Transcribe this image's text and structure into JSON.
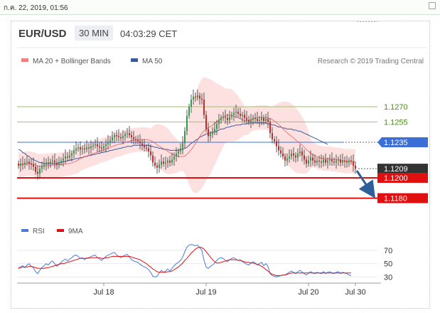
{
  "topbar": {
    "date": "ก.ค. 22, 2019, 01:56"
  },
  "header": {
    "pair": "EUR/USD",
    "timeframe": "30 MIN",
    "time": "04:03:29 CET"
  },
  "legend": {
    "ma20": "MA 20 + Bollinger Bands",
    "ma50": "MA 50",
    "credit": "Research © 2019 Trading Central"
  },
  "rsi_legend": {
    "rsi": "RSI",
    "ma9": "9MA"
  },
  "colors": {
    "candle_up": "#2e9a4a",
    "candle_down": "#c62828",
    "ma20": "#e94b4b",
    "ma50": "#3c5a9a",
    "band": "#fdd9d9",
    "support": "#e01010",
    "resistance": "#9bc46a",
    "pivot": "#3c6fd8",
    "arrow": "#2d5f9a",
    "rsi": "#4a7cd6"
  },
  "chart_data": {
    "type": "candlestick",
    "ylim": [
      1.1165,
      1.1305
    ],
    "price_levels": [
      {
        "value": 1.127,
        "label": "1.1270",
        "kind": "resistance"
      },
      {
        "value": 1.1255,
        "label": "1.1255",
        "kind": "resistance"
      },
      {
        "value": 1.1235,
        "label": "1.1235",
        "kind": "pivot"
      },
      {
        "value": 1.1209,
        "label": "1.1209",
        "kind": "last"
      },
      {
        "value": 1.12,
        "label": "1.1200",
        "kind": "support"
      },
      {
        "value": 1.118,
        "label": "1.1180",
        "kind": "support"
      }
    ],
    "xaxis": [
      {
        "label": "Jul 18",
        "index": 40
      },
      {
        "label": "Jul 19",
        "index": 88
      },
      {
        "label": "Jul 20",
        "index": 136
      },
      {
        "label": "Jul 30",
        "index": 158
      }
    ],
    "close": [
      1.1212,
      1.1214,
      1.1213,
      1.1215,
      1.1216,
      1.1214,
      1.1213,
      1.1211,
      1.1206,
      1.1204,
      1.1209,
      1.1211,
      1.1213,
      1.1215,
      1.1214,
      1.1216,
      1.1217,
      1.1215,
      1.1213,
      1.1215,
      1.1217,
      1.1219,
      1.1221,
      1.122,
      1.1222,
      1.1224,
      1.1227,
      1.1229,
      1.123,
      1.1228,
      1.1229,
      1.1228,
      1.123,
      1.1229,
      1.1231,
      1.1232,
      1.1233,
      1.1231,
      1.123,
      1.1229,
      1.1231,
      1.1233,
      1.1235,
      1.1237,
      1.124,
      1.1242,
      1.1241,
      1.124,
      1.1239,
      1.1241,
      1.1243,
      1.1244,
      1.1242,
      1.124,
      1.1238,
      1.1237,
      1.1236,
      1.1234,
      1.1232,
      1.123,
      1.1229,
      1.1226,
      1.1222,
      1.1215,
      1.1212,
      1.121,
      1.1213,
      1.1216,
      1.1214,
      1.1215,
      1.1217,
      1.1215,
      1.1218,
      1.1221,
      1.1224,
      1.1226,
      1.1229,
      1.1234,
      1.1246,
      1.1261,
      1.127,
      1.1277,
      1.128,
      1.1279,
      1.1281,
      1.1278,
      1.1277,
      1.1262,
      1.1248,
      1.1241,
      1.1243,
      1.1245,
      1.1248,
      1.1253,
      1.1257,
      1.1259,
      1.126,
      1.1259,
      1.1257,
      1.126,
      1.1262,
      1.1264,
      1.1265,
      1.1263,
      1.1261,
      1.1262,
      1.1259,
      1.1257,
      1.1255,
      1.1257,
      1.1259,
      1.1258,
      1.1256,
      1.1257,
      1.1259,
      1.1256,
      1.1258,
      1.1255,
      1.1244,
      1.1238,
      1.1236,
      1.1231,
      1.1227,
      1.1224,
      1.1221,
      1.1217,
      1.1219,
      1.1221,
      1.1224,
      1.1222,
      1.122,
      1.1224,
      1.1226,
      1.1222,
      1.1218,
      1.1214,
      1.1217,
      1.122,
      1.1217,
      1.1215,
      1.1217,
      1.1216,
      1.1215,
      1.1218,
      1.1215,
      1.1217,
      1.1218,
      1.1216,
      1.1215,
      1.1217,
      1.1218,
      1.1215,
      1.1217,
      1.1216,
      1.1215,
      1.1217,
      1.1216,
      1.1212,
      1.1209
    ],
    "ma50": [
      1.1228,
      1.1227,
      1.1225,
      1.1224,
      1.1222,
      1.1221,
      1.1219,
      1.1218,
      1.1217,
      1.1216,
      1.1215,
      1.1215,
      1.1214,
      1.1214,
      1.1214,
      1.1214,
      1.1214,
      1.1214,
      1.1214,
      1.1215,
      1.1215,
      1.1216,
      1.1216,
      1.1217,
      1.1217,
      1.1218,
      1.1218,
      1.1219,
      1.1219,
      1.122,
      1.122,
      1.1221,
      1.1221,
      1.1222,
      1.1222,
      1.1223,
      1.1223,
      1.1224,
      1.1224,
      1.1225,
      1.1225,
      1.1226,
      1.1226,
      1.1227,
      1.1227,
      1.1228,
      1.1228,
      1.1229,
      1.1229,
      1.123,
      1.123,
      1.1231,
      1.1231,
      1.1231,
      1.1232,
      1.1232,
      1.1232,
      1.1232,
      1.1232,
      1.1232,
      1.1232,
      1.1232,
      1.1231,
      1.1231,
      1.123,
      1.123,
      1.1229,
      1.1229,
      1.1228,
      1.1228,
      1.1228,
      1.1227,
      1.1227,
      1.1227,
      1.1227,
      1.1227,
      1.1228,
      1.1228,
      1.1229,
      1.123,
      1.1232,
      1.1234,
      1.1235,
      1.1237,
      1.1238,
      1.124,
      1.1241,
      1.1242,
      1.1243,
      1.1244,
      1.1244,
      1.1245,
      1.1245,
      1.1246,
      1.1247,
      1.1248,
      1.1248,
      1.1249,
      1.125,
      1.125,
      1.1251,
      1.1251,
      1.1252,
      1.1252,
      1.1252,
      1.1253,
      1.1253,
      1.1253,
      1.1254,
      1.1254,
      1.1254,
      1.1254,
      1.1254,
      1.1254,
      1.1254,
      1.1254,
      1.1254,
      1.1253,
      1.1253,
      1.1252,
      1.1252,
      1.1251,
      1.125,
      1.125,
      1.1249,
      1.1249,
      1.1248,
      1.1248,
      1.1248,
      1.1247,
      1.1247,
      1.1246,
      1.1246,
      1.1245,
      1.1244,
      1.1243,
      1.1242,
      1.1241,
      1.124,
      1.1239,
      1.1238,
      1.1237,
      1.1236,
      1.1235,
      1.1234,
      1.1233
    ],
    "rsi": [
      42,
      45,
      47,
      44,
      48,
      50,
      46,
      44,
      38,
      35,
      40,
      44,
      47,
      50,
      48,
      52,
      54,
      50,
      46,
      49,
      52,
      55,
      57,
      54,
      57,
      59,
      62,
      63,
      61,
      58,
      59,
      56,
      59,
      58,
      61,
      62,
      63,
      59,
      57,
      55,
      58,
      61,
      63,
      64,
      66,
      67,
      63,
      61,
      59,
      61,
      63,
      64,
      60,
      56,
      54,
      53,
      52,
      49,
      47,
      45,
      44,
      41,
      37,
      31,
      30,
      31,
      36,
      40,
      37,
      39,
      42,
      39,
      43,
      47,
      50,
      52,
      55,
      60,
      68,
      75,
      78,
      79,
      78,
      77,
      78,
      74,
      70,
      55,
      45,
      43,
      46,
      48,
      51,
      55,
      58,
      59,
      58,
      55,
      53,
      56,
      58,
      59,
      57,
      55,
      56,
      53,
      51,
      49,
      48,
      51,
      53,
      51,
      48,
      50,
      52,
      47,
      50,
      46,
      35,
      32,
      31,
      30,
      31,
      32,
      33,
      33,
      35,
      37,
      39,
      37,
      35,
      38,
      40,
      37,
      35,
      33,
      36,
      38,
      36,
      35,
      37,
      36,
      35,
      38,
      35,
      37,
      38,
      36,
      35,
      37,
      38,
      35,
      37,
      36,
      35,
      33,
      32
    ],
    "rsi_ma9": [
      44,
      44,
      45,
      45,
      45,
      46,
      46,
      45,
      44,
      43,
      43,
      43,
      43,
      44,
      44,
      45,
      46,
      47,
      48,
      49,
      50,
      50,
      51,
      52,
      53,
      54,
      55,
      56,
      57,
      58,
      58,
      58,
      58,
      59,
      59,
      59,
      59,
      59,
      59,
      58,
      58,
      59,
      59,
      60,
      61,
      61,
      61,
      61,
      61,
      61,
      61,
      61,
      61,
      60,
      59,
      58,
      57,
      56,
      54,
      52,
      50,
      47,
      45,
      42,
      40,
      38,
      37,
      37,
      37,
      37,
      38,
      38,
      39,
      41,
      43,
      45,
      48,
      51,
      55,
      58,
      62,
      66,
      69,
      72,
      74,
      75,
      74,
      72,
      68,
      64,
      60,
      56,
      53,
      51,
      51,
      52,
      53,
      54,
      55,
      56,
      56,
      56,
      56,
      55,
      55,
      54,
      53,
      52,
      52,
      51,
      51,
      50,
      49,
      48,
      46,
      44,
      41,
      39,
      36,
      34,
      33,
      32,
      32,
      32,
      33,
      33,
      34,
      35,
      36,
      36,
      36,
      36,
      36,
      36,
      36,
      36,
      36,
      36,
      36,
      36,
      36,
      36,
      36,
      36,
      36,
      36,
      36,
      36,
      36,
      36,
      36,
      36,
      36,
      36,
      36,
      36,
      36
    ],
    "rsi_levels": [
      70,
      50,
      30
    ]
  }
}
